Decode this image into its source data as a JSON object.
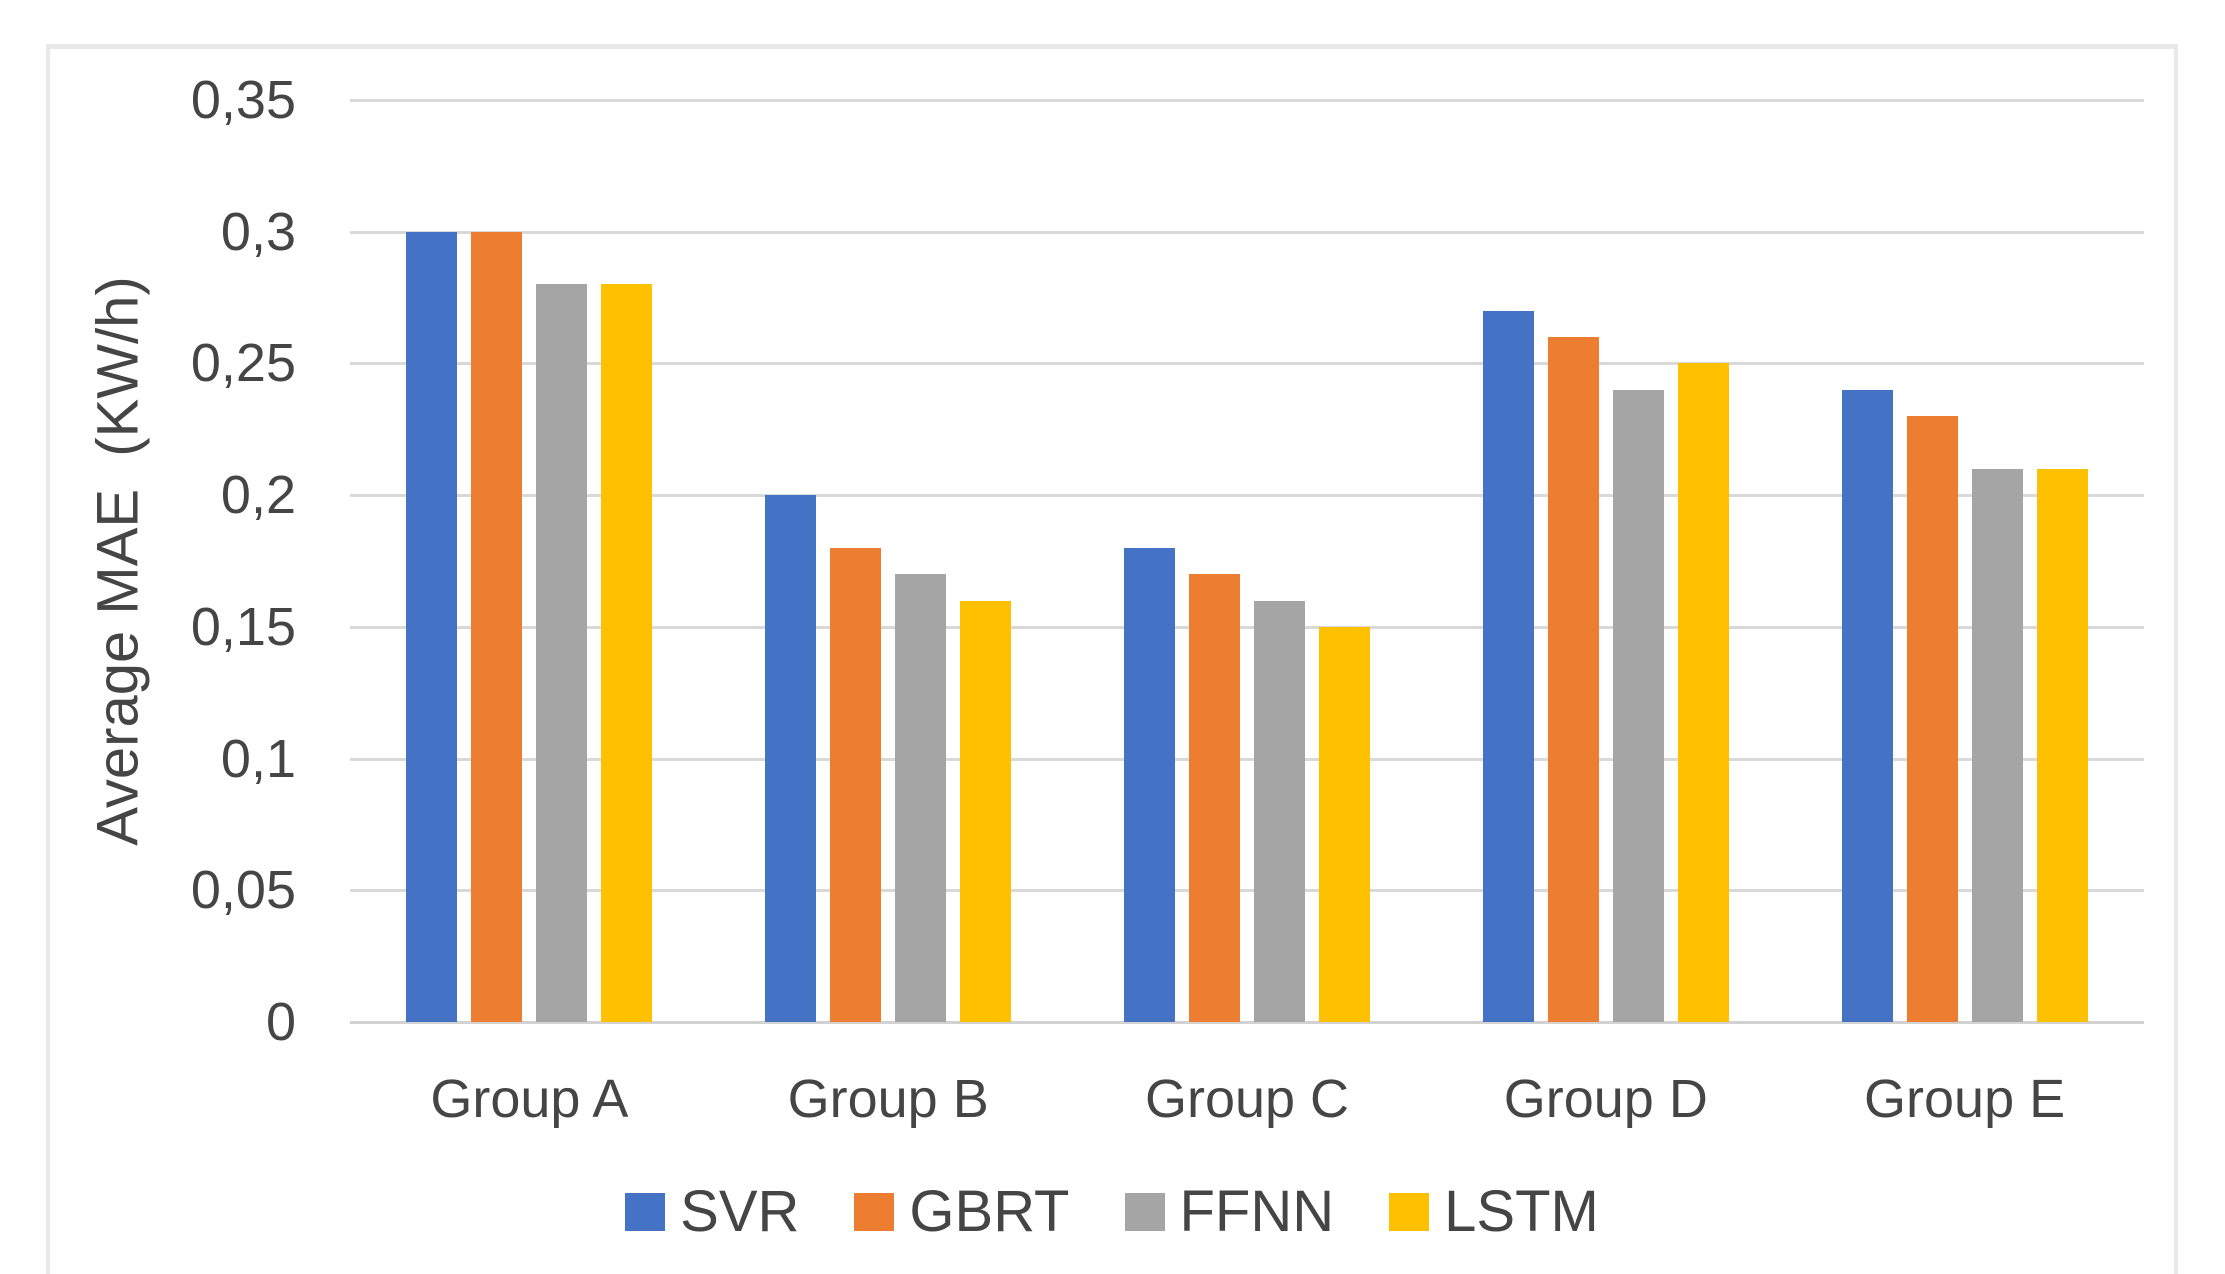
{
  "chart_data": {
    "type": "bar",
    "categories": [
      "Group A",
      "Group B",
      "Group C",
      "Group D",
      "Group E"
    ],
    "series": [
      {
        "name": "SVR",
        "color": "#4472C4",
        "values": [
          0.3,
          0.2,
          0.18,
          0.27,
          0.24
        ]
      },
      {
        "name": "GBRT",
        "color": "#ED7D31",
        "values": [
          0.3,
          0.18,
          0.17,
          0.26,
          0.23
        ]
      },
      {
        "name": "FFNN",
        "color": "#A5A5A5",
        "values": [
          0.28,
          0.17,
          0.16,
          0.24,
          0.21
        ]
      },
      {
        "name": "LSTM",
        "color": "#FFC000",
        "values": [
          0.28,
          0.16,
          0.15,
          0.25,
          0.21
        ]
      }
    ],
    "title": "",
    "xlabel": "",
    "ylabel": "Average MAE  (KW/h)",
    "ylim": [
      0,
      0.35
    ],
    "ytick_step": 0.05,
    "ytick_labels": [
      "0",
      "0,05",
      "0,1",
      "0,15",
      "0,2",
      "0,25",
      "0,3",
      "0,35"
    ],
    "grid": true,
    "legend_position": "bottom"
  },
  "style_colors": {
    "gridline": "#d9d9d9",
    "axis_line": "#d2d2d2",
    "text": "#454545",
    "frame_border": "#e9e9e9",
    "background": "#ffffff"
  }
}
